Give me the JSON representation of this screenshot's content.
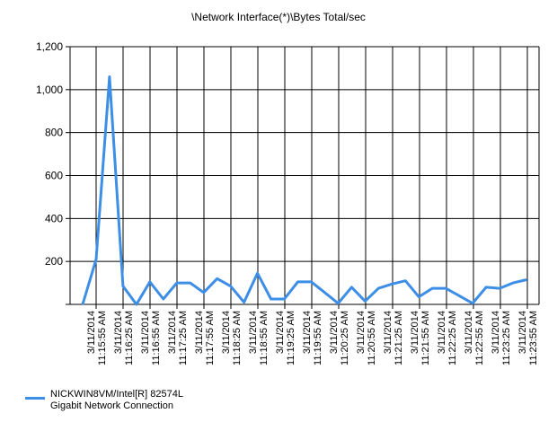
{
  "chart_data": {
    "type": "line",
    "title": "\\Network Interface(*)\\Bytes Total/sec",
    "ylim": [
      0,
      1200
    ],
    "yticks": [
      0,
      200,
      400,
      600,
      800,
      1000,
      1200
    ],
    "ytick_labels": [
      "",
      "200",
      "400",
      "600",
      "800",
      "1,000",
      "1,200"
    ],
    "grid": true,
    "legend_position": "bottom-left",
    "color": "#3d8ee6",
    "x_tick_labels": [
      [
        "3/11/2014",
        "11:15:55 AM"
      ],
      [
        "3/11/2014",
        "11:16:25 AM"
      ],
      [
        "3/11/2014",
        "11:16:55 AM"
      ],
      [
        "3/11/2014",
        "11:17:25 AM"
      ],
      [
        "3/11/2014",
        "11:17:55 AM"
      ],
      [
        "3/11/2014",
        "11:18:25 AM"
      ],
      [
        "3/11/2014",
        "11:18:55 AM"
      ],
      [
        "3/11/2014",
        "11:19:25 AM"
      ],
      [
        "3/11/2014",
        "11:19:55 AM"
      ],
      [
        "3/11/2014",
        "11:20:25 AM"
      ],
      [
        "3/11/2014",
        "11:20:55 AM"
      ],
      [
        "3/11/2014",
        "11:21:25 AM"
      ],
      [
        "3/11/2014",
        "11:21:55 AM"
      ],
      [
        "3/11/2014",
        "11:22:25 AM"
      ],
      [
        "3/11/2014",
        "11:22:55 AM"
      ],
      [
        "3/11/2014",
        "11:23:25 AM"
      ],
      [
        "3/11/2014",
        "11:23:55 AM"
      ]
    ],
    "series": [
      {
        "name": "NICKWIN8VM/Intel[R] 82574L\nGigabit Network Connection",
        "values": [
          0,
          210,
          1060,
          85,
          0,
          105,
          25,
          100,
          100,
          55,
          120,
          85,
          10,
          145,
          25,
          25,
          105,
          105,
          55,
          5,
          80,
          15,
          75,
          95,
          110,
          35,
          75,
          75,
          40,
          5,
          80,
          75,
          100,
          115
        ]
      }
    ]
  }
}
